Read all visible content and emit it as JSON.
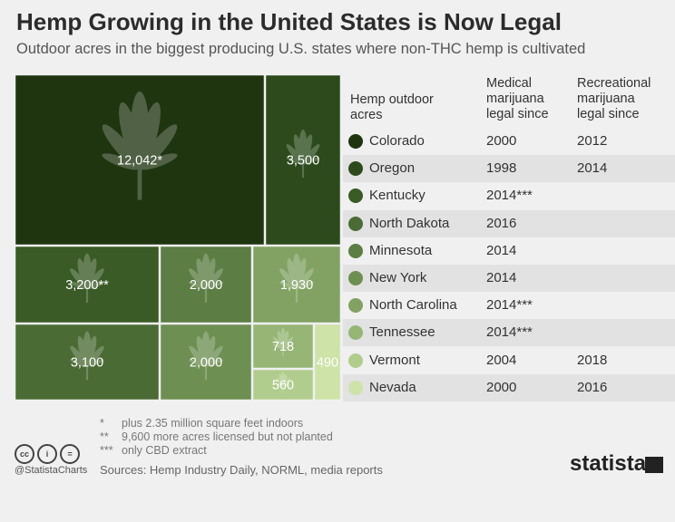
{
  "header": {
    "title": "Hemp Growing in the United States is Now Legal",
    "subtitle": "Outdoor acres in the biggest producing U.S. states where non-THC hemp is cultivated"
  },
  "table_headers": {
    "col1": [
      "Hemp outdoor",
      "acres"
    ],
    "col2": [
      "Medical",
      "marijuana",
      "legal since"
    ],
    "col3": [
      "Recreational",
      "marijuana",
      "legal since"
    ]
  },
  "chart_data": {
    "type": "treemap",
    "title": "Hemp Growing in the United States is Now Legal",
    "subtitle": "Outdoor acres in the biggest producing U.S. states where non-THC hemp is cultivated",
    "series": [
      {
        "state": "Colorado",
        "value": 12042,
        "label": "12,042*",
        "medical": "2000",
        "recreational": "2012",
        "color": "#1e3510"
      },
      {
        "state": "Oregon",
        "value": 3500,
        "label": "3,500",
        "medical": "1998",
        "recreational": "2014",
        "color": "#2c4a1b"
      },
      {
        "state": "Kentucky",
        "value": 3200,
        "label": "3,200**",
        "medical": "2014***",
        "recreational": "",
        "color": "#3a5a26"
      },
      {
        "state": "North Dakota",
        "value": 3100,
        "label": "3,100",
        "medical": "2016",
        "recreational": "",
        "color": "#4b6b35"
      },
      {
        "state": "Minnesota",
        "value": 2000,
        "label": "2,000",
        "medical": "2014",
        "recreational": "",
        "color": "#5c7d43"
      },
      {
        "state": "New York",
        "value": 2000,
        "label": "2,000",
        "medical": "2014",
        "recreational": "",
        "color": "#6e8f52"
      },
      {
        "state": "North Carolina",
        "value": 1930,
        "label": "1,930",
        "medical": "2014***",
        "recreational": "",
        "color": "#82a263"
      },
      {
        "state": "Tennessee",
        "value": 718,
        "label": "718",
        "medical": "2014***",
        "recreational": "",
        "color": "#97b676"
      },
      {
        "state": "Vermont",
        "value": 560,
        "label": "560",
        "medical": "2004",
        "recreational": "2018",
        "color": "#b1cd8d"
      },
      {
        "state": "Nevada",
        "value": 490,
        "label": "490",
        "medical": "2000",
        "recreational": "2016",
        "color": "#cde3a8"
      }
    ]
  },
  "footnotes": [
    {
      "mark": "*",
      "text": "plus 2.35 million square feet indoors"
    },
    {
      "mark": "**",
      "text": "9,600 more acres licensed but not planted"
    },
    {
      "mark": "***",
      "text": "only CBD extract"
    }
  ],
  "footer": {
    "cc_icons": [
      "cc",
      "i",
      "="
    ],
    "handle": "@StatistaCharts",
    "sources": "Sources: Hemp Industry Daily, NORML, media reports",
    "brand": "statista"
  }
}
